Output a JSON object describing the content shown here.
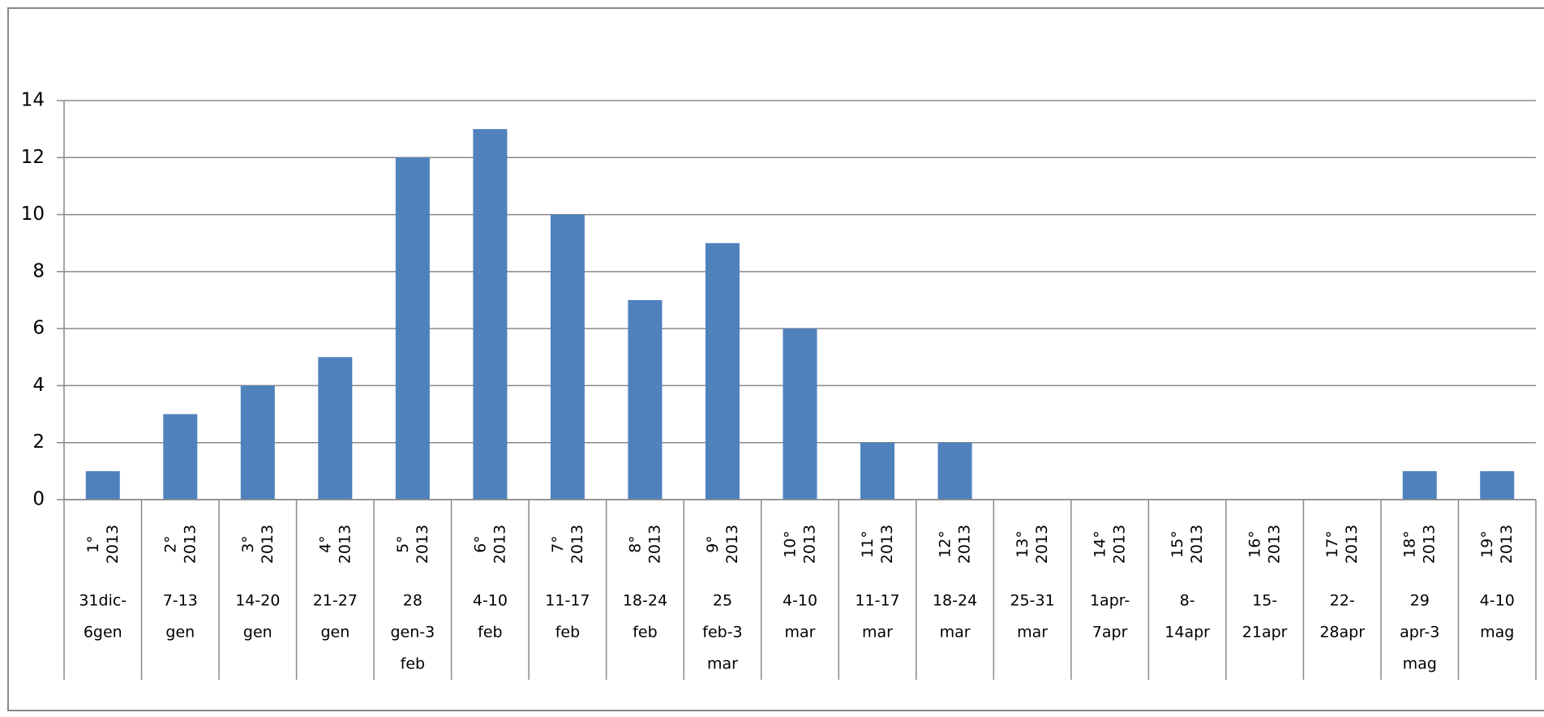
{
  "chart_data": {
    "type": "bar",
    "categories": [
      "1° 2013",
      "2° 2013",
      "3° 2013",
      "4° 2013",
      "5° 2013",
      "6° 2013",
      "7° 2013",
      "8° 2013",
      "9° 2013",
      "10° 2013",
      "11° 2013",
      "12° 2013",
      "13° 2013",
      "14° 2013",
      "15° 2013",
      "16° 2013",
      "17° 2013",
      "18° 2013",
      "19° 2013"
    ],
    "periods": [
      [
        "31dic-",
        "6gen"
      ],
      [
        "7-13",
        "gen"
      ],
      [
        "14-20",
        "gen"
      ],
      [
        "21-27",
        "gen"
      ],
      [
        "28",
        "gen-3",
        "feb"
      ],
      [
        "4-10",
        "feb"
      ],
      [
        "11-17",
        "feb"
      ],
      [
        "18-24",
        "feb"
      ],
      [
        "25",
        "feb-3",
        "mar"
      ],
      [
        "4-10",
        "mar"
      ],
      [
        "11-17",
        "mar"
      ],
      [
        "18-24",
        "mar"
      ],
      [
        "25-31",
        "mar"
      ],
      [
        "1apr-",
        "7apr"
      ],
      [
        "8-",
        "14apr"
      ],
      [
        "15-",
        "21apr"
      ],
      [
        "22-",
        "28apr"
      ],
      [
        "29",
        "apr-3",
        "mag"
      ],
      [
        "4-10",
        "mag"
      ]
    ],
    "values": [
      1,
      3,
      4,
      5,
      12,
      13,
      10,
      7,
      9,
      6,
      2,
      2,
      0,
      0,
      0,
      0,
      0,
      1,
      1
    ],
    "color": "#4f81bd",
    "ylim": [
      0,
      14
    ],
    "yticks": [
      0,
      2,
      4,
      6,
      8,
      10,
      12,
      14
    ],
    "grid": true
  }
}
